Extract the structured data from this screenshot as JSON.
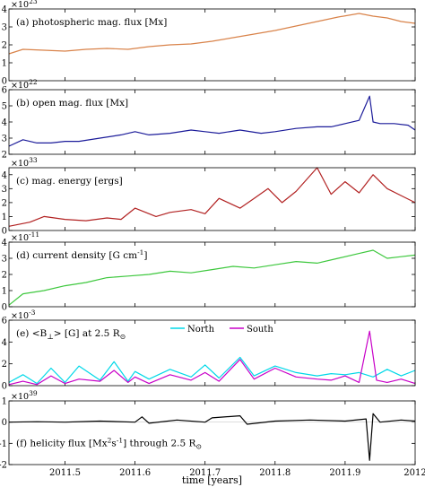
{
  "figure": {
    "xlabel": "time [years]",
    "xticks": [
      "2011.5",
      "2011.6",
      "2011.7",
      "2011.8",
      "2011.9",
      "2012"
    ]
  },
  "chart_data": [
    {
      "type": "line",
      "title": "(a) photospheric mag. flux [Mx]",
      "exponent": "×10",
      "exponent_power": "23",
      "xlim": [
        2011.42,
        2012.0
      ],
      "ylim": [
        0,
        4
      ],
      "yticks": [
        0,
        1,
        2,
        3,
        4
      ],
      "color": "#d9834a",
      "series": [
        {
          "x": [
            2011.42,
            2011.44,
            2011.47,
            2011.5,
            2011.53,
            2011.56,
            2011.59,
            2011.62,
            2011.65,
            2011.68,
            2011.71,
            2011.74,
            2011.77,
            2011.8,
            2011.83,
            2011.86,
            2011.89,
            2011.92,
            2011.94,
            2011.96,
            2011.98,
            2012.0
          ],
          "values": [
            1.5,
            1.75,
            1.7,
            1.65,
            1.75,
            1.8,
            1.75,
            1.9,
            2.0,
            2.05,
            2.2,
            2.4,
            2.6,
            2.8,
            3.05,
            3.3,
            3.55,
            3.75,
            3.6,
            3.5,
            3.3,
            3.2
          ]
        }
      ]
    },
    {
      "type": "line",
      "title": "(b) open mag. flux [Mx]",
      "exponent": "×10",
      "exponent_power": "22",
      "xlim": [
        2011.42,
        2012.0
      ],
      "ylim": [
        2,
        6
      ],
      "yticks": [
        2,
        3,
        4,
        5,
        6
      ],
      "color": "#1c1c9a",
      "series": [
        {
          "x": [
            2011.42,
            2011.44,
            2011.46,
            2011.48,
            2011.5,
            2011.52,
            2011.55,
            2011.58,
            2011.6,
            2011.62,
            2011.65,
            2011.68,
            2011.7,
            2011.72,
            2011.75,
            2011.78,
            2011.8,
            2011.83,
            2011.86,
            2011.88,
            2011.9,
            2011.92,
            2011.935,
            2011.94,
            2011.95,
            2011.97,
            2011.99,
            2012.0
          ],
          "values": [
            2.5,
            2.9,
            2.7,
            2.7,
            2.8,
            2.8,
            3.0,
            3.2,
            3.4,
            3.2,
            3.3,
            3.5,
            3.4,
            3.3,
            3.5,
            3.3,
            3.4,
            3.6,
            3.7,
            3.7,
            3.9,
            4.1,
            5.6,
            4.0,
            3.9,
            3.9,
            3.8,
            3.5
          ]
        }
      ]
    },
    {
      "type": "line",
      "title": "(c) mag. energy [ergs]",
      "exponent": "×10",
      "exponent_power": "33",
      "xlim": [
        2011.42,
        2012.0
      ],
      "ylim": [
        0,
        4.5
      ],
      "yticks": [
        0,
        1,
        2,
        3,
        4
      ],
      "color": "#b22222",
      "series": [
        {
          "x": [
            2011.42,
            2011.45,
            2011.47,
            2011.5,
            2011.53,
            2011.56,
            2011.58,
            2011.6,
            2011.63,
            2011.65,
            2011.68,
            2011.7,
            2011.72,
            2011.75,
            2011.77,
            2011.79,
            2011.81,
            2011.83,
            2011.86,
            2011.88,
            2011.9,
            2011.92,
            2011.94,
            2011.96,
            2011.98,
            2012.0
          ],
          "values": [
            0.3,
            0.6,
            1.0,
            0.8,
            0.7,
            0.9,
            0.8,
            1.6,
            1.0,
            1.3,
            1.5,
            1.2,
            2.3,
            1.6,
            2.3,
            3.0,
            2.0,
            2.8,
            4.5,
            2.6,
            3.5,
            2.7,
            4.0,
            3.0,
            2.5,
            2.0
          ]
        }
      ]
    },
    {
      "type": "line",
      "title": "(d) current density [G cm",
      "title_sup": "-1",
      "title_end": "]",
      "exponent": "×10",
      "exponent_power": "-11",
      "xlim": [
        2011.42,
        2012.0
      ],
      "ylim": [
        0,
        4
      ],
      "yticks": [
        0,
        1,
        2,
        3,
        4
      ],
      "color": "#3ec83e",
      "series": [
        {
          "x": [
            2011.42,
            2011.44,
            2011.47,
            2011.5,
            2011.53,
            2011.56,
            2011.59,
            2011.62,
            2011.65,
            2011.68,
            2011.71,
            2011.74,
            2011.77,
            2011.8,
            2011.83,
            2011.86,
            2011.89,
            2011.92,
            2011.94,
            2011.96,
            2011.98,
            2012.0
          ],
          "values": [
            0.1,
            0.8,
            1.0,
            1.3,
            1.5,
            1.8,
            1.9,
            2.0,
            2.2,
            2.1,
            2.3,
            2.5,
            2.4,
            2.6,
            2.8,
            2.7,
            3.0,
            3.3,
            3.5,
            3.0,
            3.1,
            3.2
          ]
        }
      ]
    },
    {
      "type": "line",
      "title": "(e) <B",
      "title_sub": "⊥",
      "title_mid": "> [G] at 2.5 R",
      "title_sub2": "⊙",
      "exponent": "×10",
      "exponent_power": "-3",
      "xlim": [
        2011.42,
        2012.0
      ],
      "ylim": [
        0,
        6
      ],
      "yticks": [
        0,
        2,
        4,
        6
      ],
      "legend": "top-center",
      "series": [
        {
          "name": "North",
          "color": "#00d8e8",
          "x": [
            2011.42,
            2011.44,
            2011.46,
            2011.48,
            2011.5,
            2011.52,
            2011.55,
            2011.57,
            2011.59,
            2011.6,
            2011.62,
            2011.65,
            2011.68,
            2011.7,
            2011.72,
            2011.75,
            2011.77,
            2011.8,
            2011.83,
            2011.86,
            2011.88,
            2011.9,
            2011.92,
            2011.94,
            2011.96,
            2011.98,
            2012.0
          ],
          "values": [
            0.3,
            1.0,
            0.2,
            1.6,
            0.3,
            1.8,
            0.5,
            2.2,
            0.4,
            1.3,
            0.6,
            1.5,
            0.8,
            1.9,
            0.7,
            2.6,
            0.9,
            1.8,
            1.2,
            0.9,
            1.1,
            1.0,
            1.2,
            0.8,
            1.5,
            0.9,
            1.4
          ]
        },
        {
          "name": "South",
          "color": "#c800c8",
          "x": [
            2011.42,
            2011.44,
            2011.46,
            2011.48,
            2011.5,
            2011.52,
            2011.55,
            2011.57,
            2011.59,
            2011.6,
            2011.62,
            2011.65,
            2011.68,
            2011.7,
            2011.72,
            2011.75,
            2011.77,
            2011.8,
            2011.83,
            2011.86,
            2011.88,
            2011.9,
            2011.92,
            2011.935,
            2011.945,
            2011.96,
            2011.98,
            2012.0
          ],
          "values": [
            0.1,
            0.4,
            0.1,
            0.9,
            0.2,
            0.6,
            0.4,
            1.4,
            0.3,
            0.8,
            0.2,
            1.0,
            0.5,
            1.2,
            0.4,
            2.4,
            0.6,
            1.6,
            0.8,
            0.6,
            0.5,
            0.9,
            0.3,
            5.0,
            0.5,
            0.3,
            0.6,
            0.2
          ]
        }
      ]
    },
    {
      "type": "line",
      "title": "(f) helicity flux [Mx",
      "title_sup": "2",
      "title_mid": "s",
      "title_sup2": "-1",
      "title_end": "] through 2.5 R",
      "title_sub": "⊙",
      "exponent": "×10",
      "exponent_power": "39",
      "xlim": [
        2011.42,
        2012.0
      ],
      "ylim": [
        -2,
        1
      ],
      "yticks": [
        -2,
        -1,
        0,
        1
      ],
      "color": "#000000",
      "series": [
        {
          "x": [
            2011.42,
            2011.46,
            2011.5,
            2011.55,
            2011.6,
            2011.61,
            2011.62,
            2011.66,
            2011.7,
            2011.71,
            2011.75,
            2011.76,
            2011.8,
            2011.85,
            2011.9,
            2011.93,
            2011.935,
            2011.94,
            2011.95,
            2011.98,
            2012.0
          ],
          "values": [
            0.0,
            0.02,
            0.0,
            0.05,
            0.0,
            0.25,
            -0.05,
            0.1,
            0.0,
            0.2,
            0.3,
            -0.1,
            0.05,
            0.1,
            0.05,
            0.15,
            -1.8,
            0.4,
            0.0,
            0.1,
            0.05
          ]
        }
      ]
    }
  ]
}
